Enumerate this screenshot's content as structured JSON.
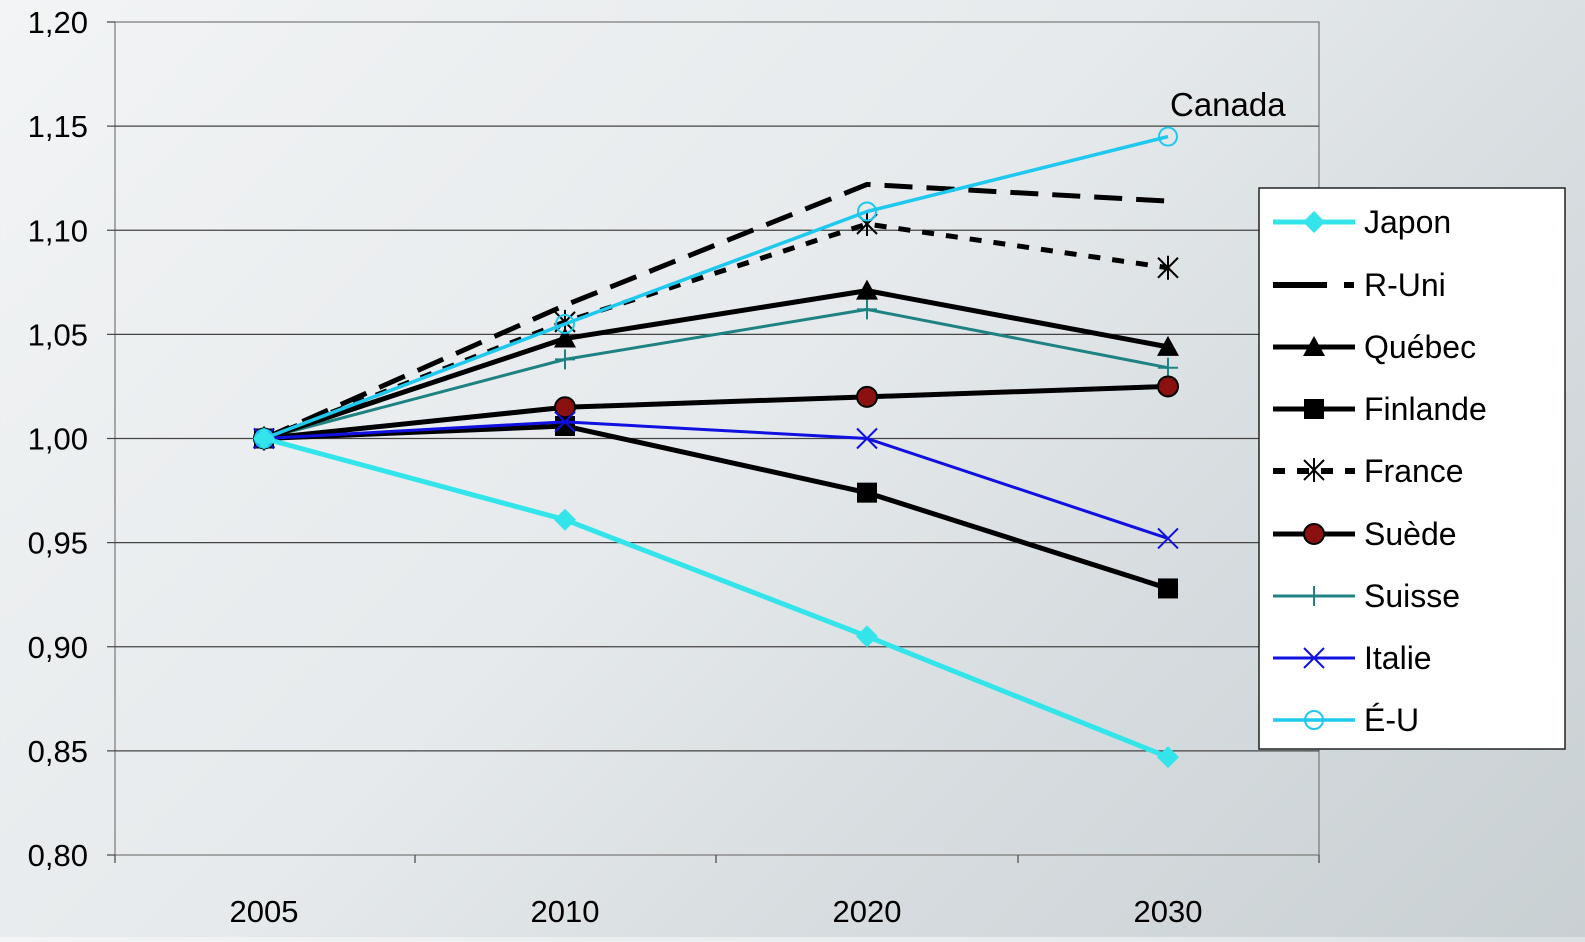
{
  "chart_data": {
    "type": "line",
    "title": "",
    "xlabel": "",
    "ylabel": "",
    "categories": [
      "2005",
      "2010",
      "2020",
      "2030"
    ],
    "ylim": [
      0.8,
      1.2
    ],
    "yticks": [
      "0,80",
      "0,85",
      "0,90",
      "0,95",
      "1,00",
      "1,05",
      "1,10",
      "1,15",
      "1,20"
    ],
    "grid": "horizontal",
    "legend_position": "right",
    "annotation": "Canada",
    "series": [
      {
        "name": "Japon",
        "values": [
          1.0,
          0.961,
          0.905,
          0.847
        ],
        "color": "#33e5ea",
        "marker": "diamond",
        "dash": "solid"
      },
      {
        "name": "R-Uni",
        "values": [
          1.0,
          1.064,
          1.122,
          1.114
        ],
        "color": "#000000",
        "marker": "none",
        "dash": "dashed"
      },
      {
        "name": "Québec",
        "values": [
          1.0,
          1.048,
          1.071,
          1.044
        ],
        "color": "#000000",
        "marker": "triangle",
        "dash": "solid"
      },
      {
        "name": "Finlande",
        "values": [
          1.0,
          1.006,
          0.974,
          0.928
        ],
        "color": "#000000",
        "marker": "square",
        "dash": "solid"
      },
      {
        "name": "France",
        "values": [
          1.0,
          1.056,
          1.103,
          1.082
        ],
        "color": "#000000",
        "marker": "asterisk",
        "dash": "dotted"
      },
      {
        "name": "Suède",
        "values": [
          1.0,
          1.015,
          1.02,
          1.025
        ],
        "color": "#000000",
        "marker": "circle",
        "dash": "solid"
      },
      {
        "name": "Suisse",
        "values": [
          1.0,
          1.038,
          1.062,
          1.034
        ],
        "color": "#1f8282",
        "marker": "plus",
        "dash": "solid"
      },
      {
        "name": "Italie",
        "values": [
          1.0,
          1.008,
          1.0,
          0.952
        ],
        "color": "#1010e0",
        "marker": "x",
        "dash": "solid"
      },
      {
        "name": "É-U",
        "values": [
          1.0,
          1.055,
          1.109,
          1.145
        ],
        "color": "#1ec8ee",
        "marker": "open-circle",
        "dash": "solid"
      }
    ]
  }
}
